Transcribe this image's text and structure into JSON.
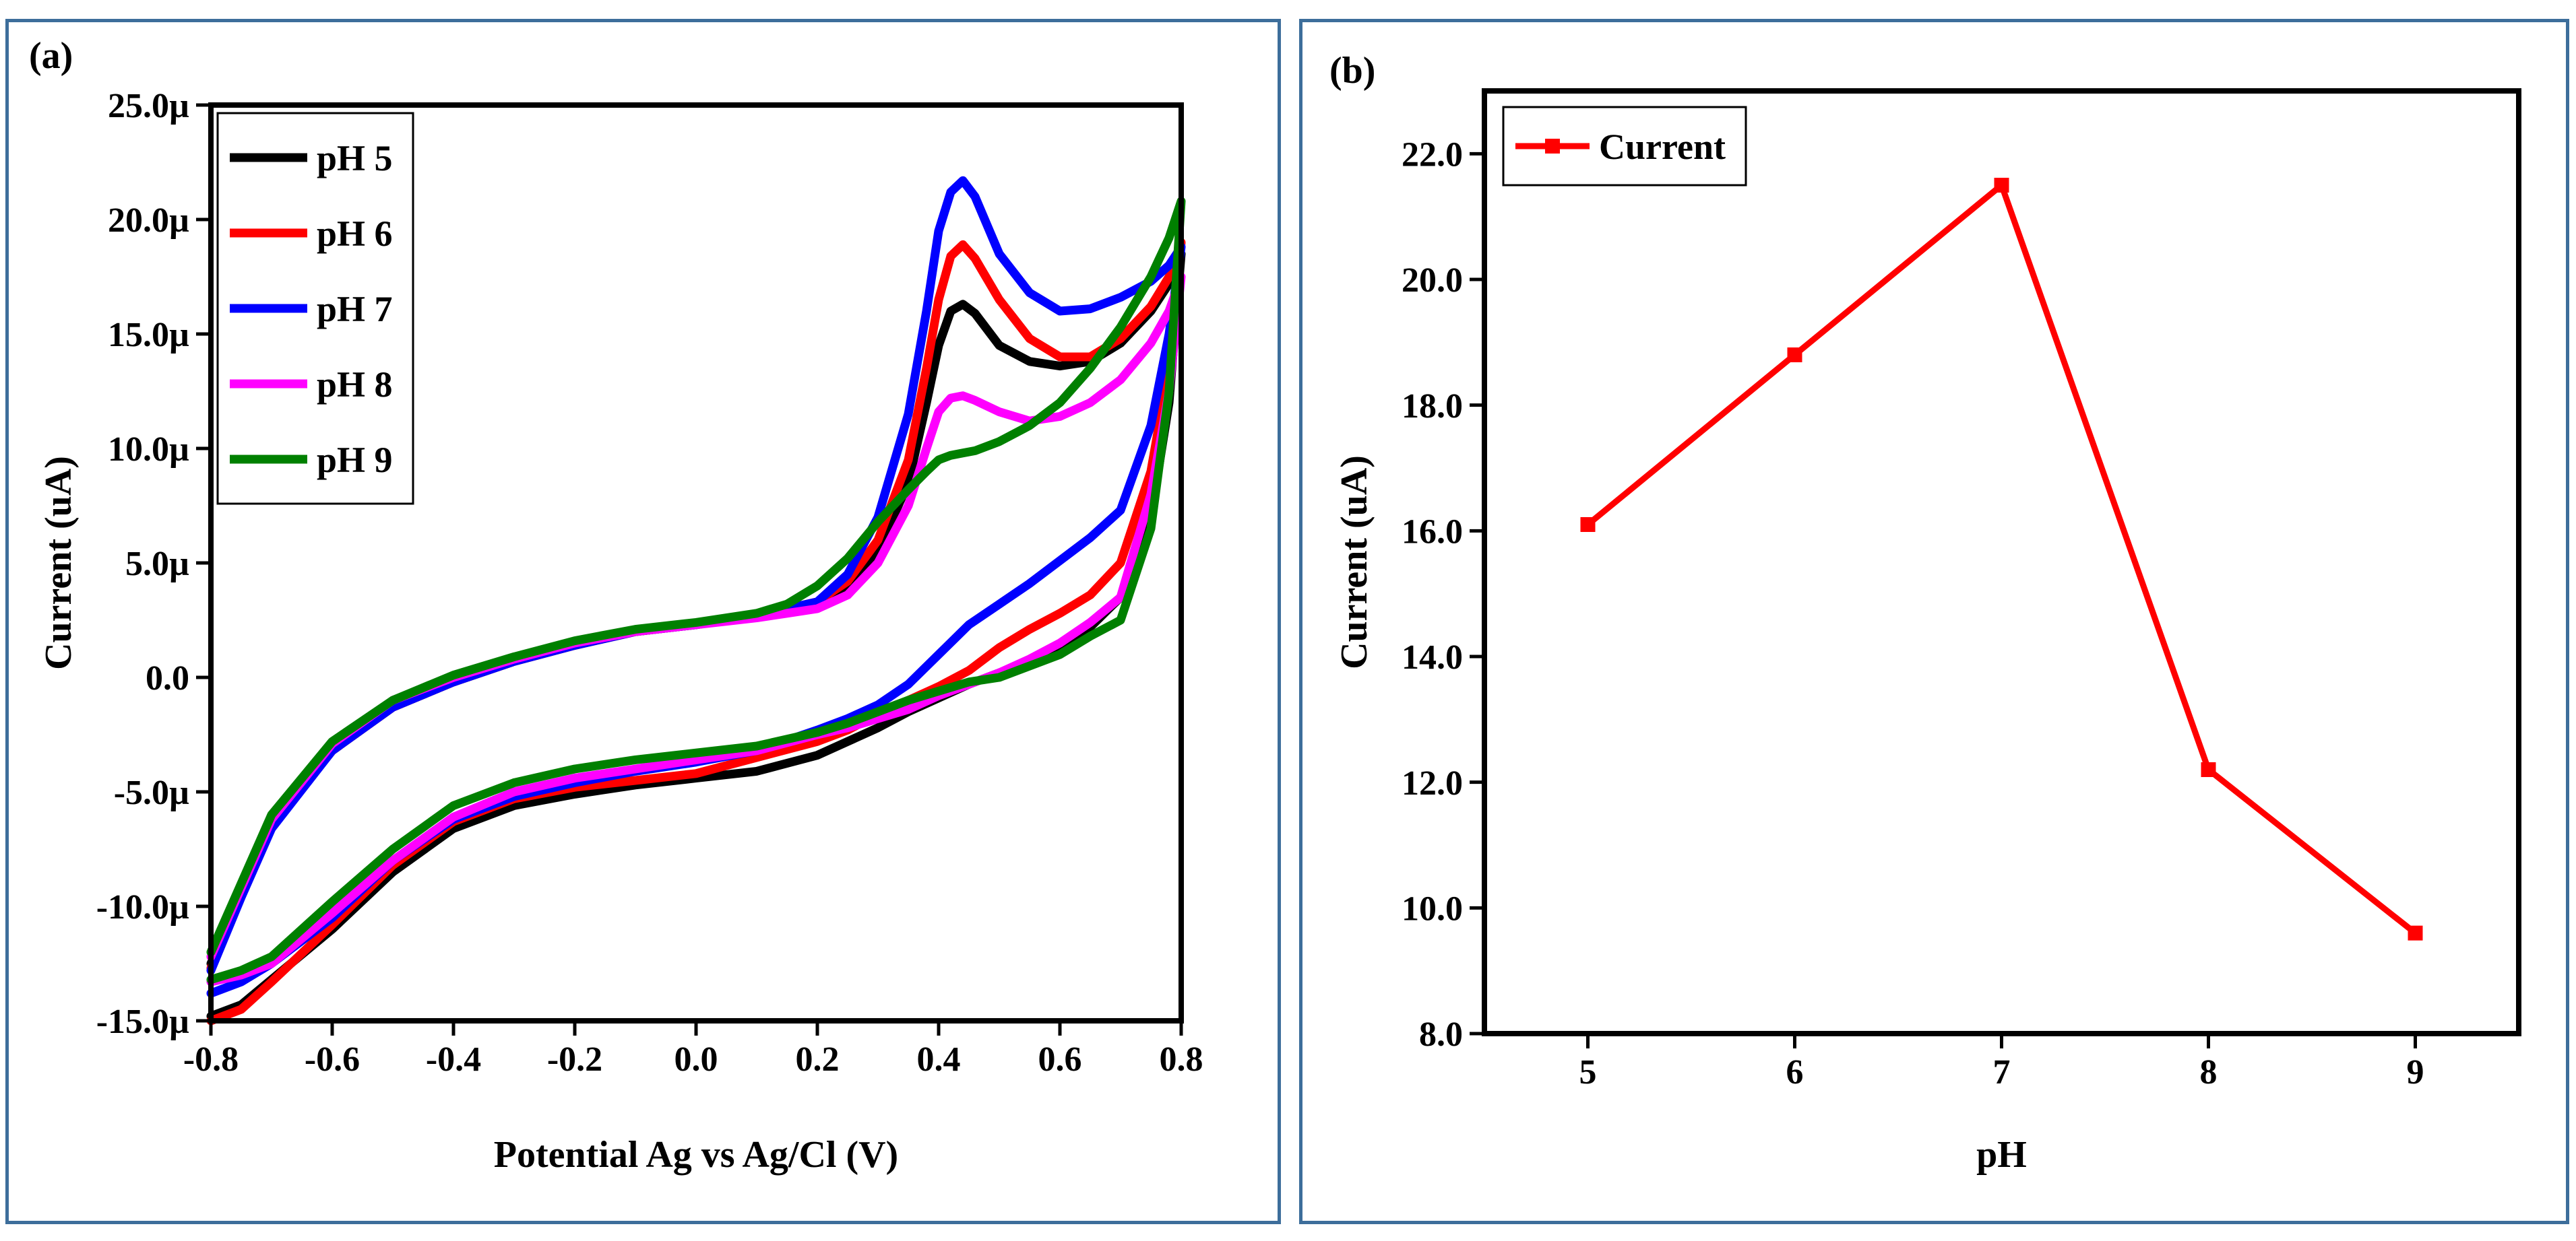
{
  "chart_data": [
    {
      "panel_label": "(a)",
      "type": "line",
      "title": "",
      "xlabel": "Potential Ag vs Ag/Cl (V)",
      "ylabel": "Current (uA)",
      "xlim": [
        -0.8,
        0.8
      ],
      "ylim": [
        -15.0,
        25.0
      ],
      "xticks": [
        -0.8,
        -0.6,
        -0.4,
        -0.2,
        0.0,
        0.2,
        0.4,
        0.6,
        0.8
      ],
      "xtick_labels": [
        "-0.8",
        "-0.6",
        "-0.4",
        "-0.2",
        "0.0",
        "0.2",
        "0.4",
        "0.6",
        "0.8"
      ],
      "yticks": [
        -15,
        -10,
        -5,
        0,
        5,
        10,
        15,
        20,
        25
      ],
      "ytick_labels": [
        "-15.0µ",
        "-10.0µ",
        "-5.0µ",
        "0.0",
        "5.0µ",
        "10.0µ",
        "15.0µ",
        "20.0µ",
        "25.0µ"
      ],
      "legend_position": "top-left",
      "series": [
        {
          "name": "pH 5",
          "color": "#000000",
          "x": [
            -0.8,
            -0.75,
            -0.7,
            -0.6,
            -0.5,
            -0.4,
            -0.3,
            -0.2,
            -0.1,
            0.0,
            0.1,
            0.15,
            0.2,
            0.25,
            0.3,
            0.35,
            0.38,
            0.4,
            0.42,
            0.44,
            0.46,
            0.5,
            0.55,
            0.6,
            0.65,
            0.7,
            0.75,
            0.78,
            0.8,
            0.8,
            0.78,
            0.75,
            0.7,
            0.65,
            0.6,
            0.55,
            0.5,
            0.45,
            0.4,
            0.35,
            0.3,
            0.25,
            0.2,
            0.1,
            0.0,
            -0.1,
            -0.2,
            -0.3,
            -0.4,
            -0.5,
            -0.6,
            -0.7,
            -0.75,
            -0.8
          ],
          "y": [
            -12.5,
            -9.5,
            -6.5,
            -3.2,
            -1.3,
            -0.2,
            0.7,
            1.4,
            2.0,
            2.3,
            2.7,
            3.0,
            3.3,
            4.0,
            5.5,
            8.5,
            12.0,
            14.5,
            16.0,
            16.3,
            15.9,
            14.5,
            13.8,
            13.6,
            13.8,
            14.6,
            16.0,
            17.2,
            18.5,
            18.5,
            12.0,
            7.0,
            3.5,
            2.2,
            1.3,
            0.7,
            0.2,
            -0.3,
            -0.9,
            -1.5,
            -2.2,
            -2.8,
            -3.4,
            -4.1,
            -4.4,
            -4.7,
            -5.1,
            -5.6,
            -6.6,
            -8.5,
            -11.0,
            -13.2,
            -14.3,
            -14.8
          ]
        },
        {
          "name": "pH 6",
          "color": "#ff0000",
          "x": [
            -0.8,
            -0.75,
            -0.7,
            -0.6,
            -0.5,
            -0.4,
            -0.3,
            -0.2,
            -0.1,
            0.0,
            0.1,
            0.15,
            0.2,
            0.25,
            0.3,
            0.35,
            0.38,
            0.4,
            0.42,
            0.44,
            0.46,
            0.5,
            0.55,
            0.6,
            0.65,
            0.7,
            0.75,
            0.78,
            0.8,
            0.8,
            0.78,
            0.75,
            0.7,
            0.65,
            0.6,
            0.55,
            0.5,
            0.45,
            0.4,
            0.35,
            0.3,
            0.25,
            0.2,
            0.1,
            0.0,
            -0.1,
            -0.2,
            -0.3,
            -0.4,
            -0.5,
            -0.6,
            -0.7,
            -0.75,
            -0.8
          ],
          "y": [
            -12.7,
            -9.5,
            -6.5,
            -3.2,
            -1.3,
            -0.2,
            0.7,
            1.4,
            2.0,
            2.3,
            2.7,
            3.0,
            3.3,
            4.2,
            6.0,
            9.5,
            13.5,
            16.5,
            18.4,
            18.9,
            18.3,
            16.5,
            14.8,
            14.0,
            14.0,
            14.8,
            16.2,
            17.5,
            19.0,
            19.0,
            13.5,
            9.0,
            5.0,
            3.6,
            2.8,
            2.1,
            1.3,
            0.3,
            -0.4,
            -1.0,
            -1.6,
            -2.3,
            -2.8,
            -3.5,
            -4.2,
            -4.5,
            -4.8,
            -5.3,
            -6.3,
            -8.2,
            -10.8,
            -13.3,
            -14.5,
            -15.0
          ]
        },
        {
          "name": "pH 7",
          "color": "#0000ff",
          "x": [
            -0.8,
            -0.75,
            -0.7,
            -0.6,
            -0.5,
            -0.4,
            -0.3,
            -0.2,
            -0.1,
            0.0,
            0.1,
            0.15,
            0.2,
            0.25,
            0.3,
            0.35,
            0.38,
            0.4,
            0.42,
            0.44,
            0.46,
            0.5,
            0.55,
            0.6,
            0.65,
            0.7,
            0.75,
            0.78,
            0.8,
            0.8,
            0.78,
            0.75,
            0.7,
            0.65,
            0.6,
            0.55,
            0.5,
            0.45,
            0.4,
            0.35,
            0.3,
            0.25,
            0.2,
            0.1,
            0.0,
            -0.1,
            -0.2,
            -0.3,
            -0.4,
            -0.5,
            -0.6,
            -0.7,
            -0.75,
            -0.8
          ],
          "y": [
            -12.8,
            -9.6,
            -6.6,
            -3.2,
            -1.3,
            -0.2,
            0.7,
            1.4,
            2.0,
            2.3,
            2.7,
            3.0,
            3.3,
            4.5,
            7.0,
            11.5,
            16.0,
            19.5,
            21.2,
            21.7,
            21.0,
            18.5,
            16.8,
            16.0,
            16.1,
            16.6,
            17.3,
            18.0,
            18.8,
            18.8,
            15.0,
            11.0,
            7.3,
            6.1,
            5.1,
            4.1,
            3.2,
            2.3,
            1.0,
            -0.3,
            -1.2,
            -1.8,
            -2.3,
            -3.2,
            -3.7,
            -4.1,
            -4.6,
            -5.2,
            -6.2,
            -8.0,
            -10.5,
            -12.5,
            -13.3,
            -13.8
          ]
        },
        {
          "name": "pH 8",
          "color": "#ff00ff",
          "x": [
            -0.8,
            -0.75,
            -0.7,
            -0.6,
            -0.5,
            -0.4,
            -0.3,
            -0.2,
            -0.1,
            0.0,
            0.1,
            0.15,
            0.2,
            0.25,
            0.3,
            0.35,
            0.38,
            0.4,
            0.42,
            0.44,
            0.46,
            0.5,
            0.55,
            0.6,
            0.65,
            0.7,
            0.75,
            0.78,
            0.8,
            0.8,
            0.78,
            0.75,
            0.7,
            0.65,
            0.6,
            0.55,
            0.5,
            0.45,
            0.4,
            0.35,
            0.3,
            0.25,
            0.2,
            0.1,
            0.0,
            -0.1,
            -0.2,
            -0.3,
            -0.4,
            -0.5,
            -0.6,
            -0.7,
            -0.75,
            -0.8
          ],
          "y": [
            -12.2,
            -9.2,
            -6.2,
            -2.9,
            -1.0,
            0.0,
            0.8,
            1.5,
            2.0,
            2.3,
            2.6,
            2.8,
            3.0,
            3.6,
            5.0,
            7.5,
            10.0,
            11.6,
            12.2,
            12.3,
            12.1,
            11.6,
            11.2,
            11.4,
            12.0,
            13.0,
            14.6,
            16.0,
            17.5,
            17.5,
            12.5,
            8.0,
            3.5,
            2.4,
            1.5,
            0.8,
            0.2,
            -0.3,
            -0.8,
            -1.4,
            -1.8,
            -2.2,
            -2.5,
            -3.2,
            -3.6,
            -4.0,
            -4.4,
            -5.0,
            -6.1,
            -8.0,
            -10.3,
            -12.5,
            -13.0,
            -13.3
          ]
        },
        {
          "name": "pH 9",
          "color": "#008000",
          "x": [
            -0.8,
            -0.75,
            -0.7,
            -0.6,
            -0.5,
            -0.4,
            -0.3,
            -0.2,
            -0.1,
            0.0,
            0.1,
            0.15,
            0.2,
            0.25,
            0.3,
            0.35,
            0.38,
            0.4,
            0.42,
            0.44,
            0.46,
            0.5,
            0.55,
            0.6,
            0.65,
            0.7,
            0.75,
            0.78,
            0.8,
            0.8,
            0.78,
            0.75,
            0.7,
            0.65,
            0.6,
            0.55,
            0.5,
            0.45,
            0.4,
            0.35,
            0.3,
            0.25,
            0.2,
            0.1,
            0.0,
            -0.1,
            -0.2,
            -0.3,
            -0.4,
            -0.5,
            -0.6,
            -0.7,
            -0.75,
            -0.8
          ],
          "y": [
            -12.0,
            -9.0,
            -6.0,
            -2.8,
            -1.0,
            0.1,
            0.9,
            1.6,
            2.1,
            2.4,
            2.8,
            3.2,
            4.0,
            5.2,
            6.8,
            8.2,
            9.0,
            9.5,
            9.7,
            9.8,
            9.9,
            10.3,
            11.0,
            12.0,
            13.5,
            15.3,
            17.5,
            19.2,
            20.8,
            20.8,
            12.5,
            6.5,
            2.5,
            1.8,
            1.0,
            0.5,
            0.0,
            -0.2,
            -0.6,
            -1.0,
            -1.5,
            -2.0,
            -2.4,
            -3.0,
            -3.3,
            -3.6,
            -4.0,
            -4.6,
            -5.6,
            -7.5,
            -9.8,
            -12.2,
            -12.8,
            -13.2
          ]
        }
      ]
    },
    {
      "panel_label": "(b)",
      "type": "line",
      "title": "",
      "xlabel": "pH",
      "ylabel": "Current (uA)",
      "xlim": [
        4.5,
        9.5
      ],
      "ylim": [
        8.0,
        23.0
      ],
      "xticks": [
        5,
        6,
        7,
        8,
        9
      ],
      "xtick_labels": [
        "5",
        "6",
        "7",
        "8",
        "9"
      ],
      "yticks": [
        8,
        10,
        12,
        14,
        16,
        18,
        20,
        22
      ],
      "ytick_labels": [
        "8.0",
        "10.0",
        "12.0",
        "14.0",
        "16.0",
        "18.0",
        "20.0",
        "22.0"
      ],
      "legend_position": "top-left",
      "series": [
        {
          "name": "Current",
          "color": "#ff0000",
          "marker": "square",
          "x": [
            5,
            6,
            7,
            8,
            9
          ],
          "y": [
            16.1,
            18.8,
            21.5,
            12.2,
            9.6
          ]
        }
      ]
    }
  ]
}
